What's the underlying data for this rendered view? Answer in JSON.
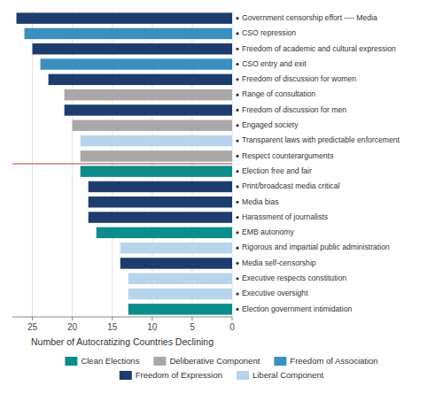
{
  "chart_data": {
    "type": "bar",
    "orientation": "horizontal",
    "categories": [
      "Government censorship effort ---- Media",
      "CSO repression",
      "Freedom of academic and cultural expression",
      "CSO entry and exit",
      "Freedom of discussion for women",
      "Range of consultation",
      "Freedom of discussion for men",
      "Engaged society",
      "Transparent laws with predictable enforcement",
      "Respect counterarguments",
      "Election free and fair",
      "Print/broadcast media critical",
      "Media bias",
      "Harassment of journalists",
      "EMB autonomy",
      "Rigorous and impartial public administration",
      "Media self-censorship",
      "Executive respects constitution",
      "Executive oversight",
      "Election government intimidation"
    ],
    "values": [
      27,
      26,
      25,
      24,
      23,
      21,
      21,
      20,
      19,
      19,
      19,
      18,
      18,
      18,
      17,
      14,
      14,
      13,
      13,
      13
    ],
    "colors": [
      "#1c3d6e",
      "#3a8fc1",
      "#1c3d6e",
      "#3a8fc1",
      "#1c3d6e",
      "#a8a8a8",
      "#1c3d6e",
      "#a8a8a8",
      "#b8d4ed",
      "#a8a8a8",
      "#0d8c8c",
      "#1c3d6e",
      "#1c3d6e",
      "#1c3d6e",
      "#0d8c8c",
      "#b8d4ed",
      "#1c3d6e",
      "#b8d4ed",
      "#b8d4ed",
      "#0d8c8c"
    ],
    "xlim": [
      27.5,
      0
    ],
    "xticks": [
      25,
      20,
      15,
      10,
      5,
      0
    ],
    "xlabel": "Number of Autocratizing Countries Declining",
    "grid": true,
    "legend": "bottom",
    "legend_items": [
      {
        "label": "Clean Elections",
        "color": "#0d8c8c"
      },
      {
        "label": "Deliberative Component",
        "color": "#a8a8a8"
      },
      {
        "label": "Freedom of Association",
        "color": "#3a8fc1"
      },
      {
        "label": "Freedom of Expression",
        "color": "#1c3d6e"
      },
      {
        "label": "Liberal Component",
        "color": "#b8d4ed"
      }
    ],
    "divider": {
      "between": [
        "Respect counterarguments",
        "Election free and fair"
      ],
      "color": "#cc3333"
    }
  }
}
